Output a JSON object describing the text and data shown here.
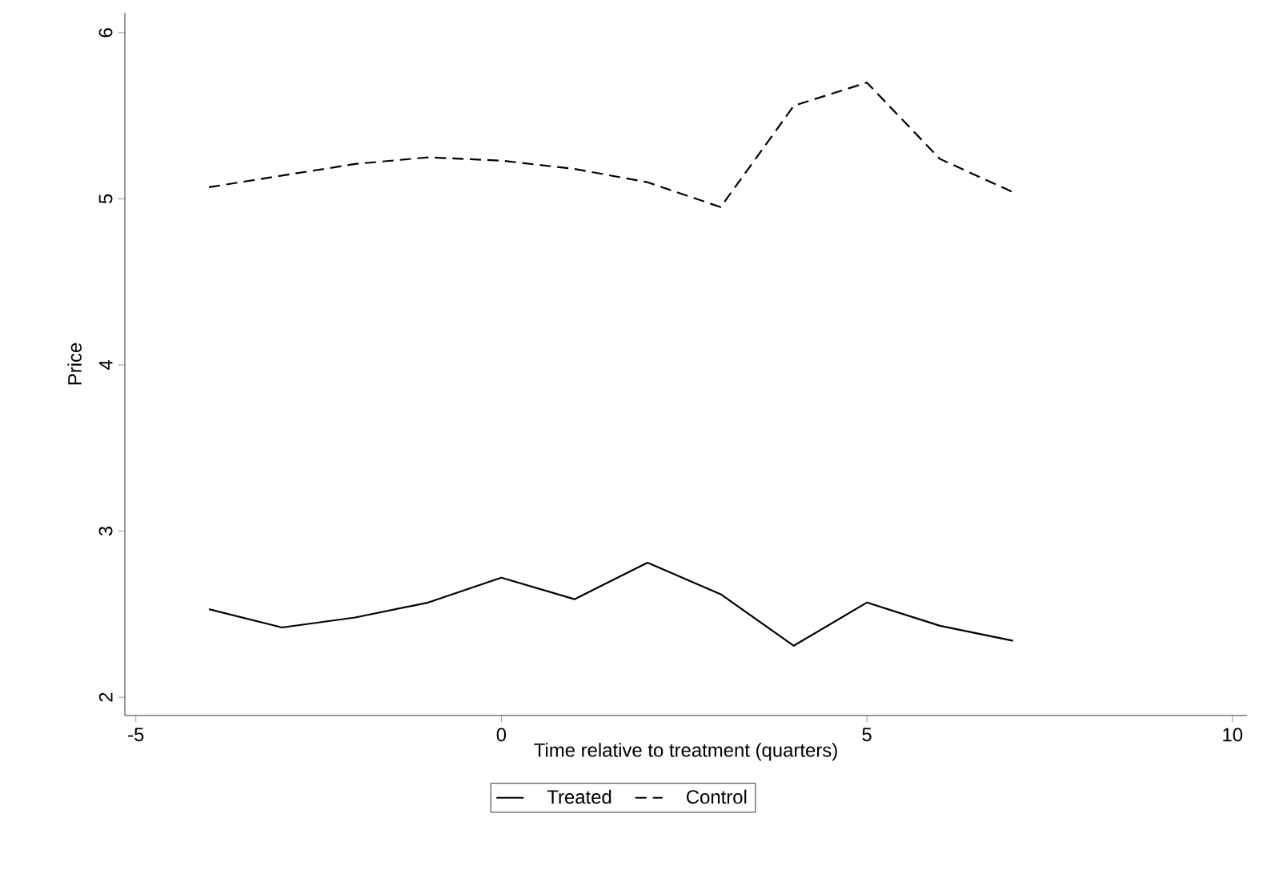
{
  "chart_data": {
    "type": "line",
    "xlabel": "Time relative to treatment (quarters)",
    "ylabel": "Price",
    "x": [
      -4,
      -3,
      -2,
      -1,
      0,
      1,
      2,
      3,
      4,
      5,
      6,
      7
    ],
    "series": [
      {
        "name": "Treated",
        "color": "#000000",
        "line_style": "solid",
        "values": [
          2.53,
          2.42,
          2.48,
          2.57,
          2.72,
          2.59,
          2.81,
          2.62,
          2.31,
          2.57,
          2.43,
          2.34
        ]
      },
      {
        "name": "Control",
        "color": "#000000",
        "line_style": "dashed",
        "values": [
          5.07,
          5.14,
          5.21,
          5.25,
          5.23,
          5.18,
          5.1,
          4.95,
          5.56,
          5.7,
          5.24,
          5.04
        ]
      }
    ],
    "xlim": [
      -5.15,
      10.2
    ],
    "xticks": [
      -5,
      0,
      5,
      10
    ],
    "ylim": [
      1.89,
      6.12
    ],
    "yticks": [
      2,
      3,
      4,
      5,
      6
    ],
    "grid": false,
    "legend": "bottom",
    "marker": "none"
  }
}
